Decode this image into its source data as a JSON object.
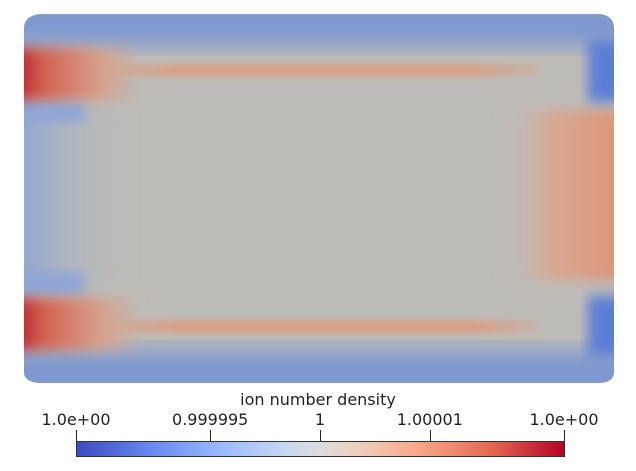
{
  "legend": {
    "title": "ion number density",
    "ticks": [
      {
        "label": "1.0e+00",
        "value": 0.0
      },
      {
        "label": "0.999995",
        "value": 0.275
      },
      {
        "label": "1",
        "value": 0.5
      },
      {
        "label": "1.00001",
        "value": 0.725
      },
      {
        "label": "1.0e+00",
        "value": 1.0
      }
    ]
  },
  "colors": {
    "low": "#3b4cc0",
    "mid": "#dddddd",
    "high": "#b40426",
    "field_background": "#bdbbb7"
  }
}
